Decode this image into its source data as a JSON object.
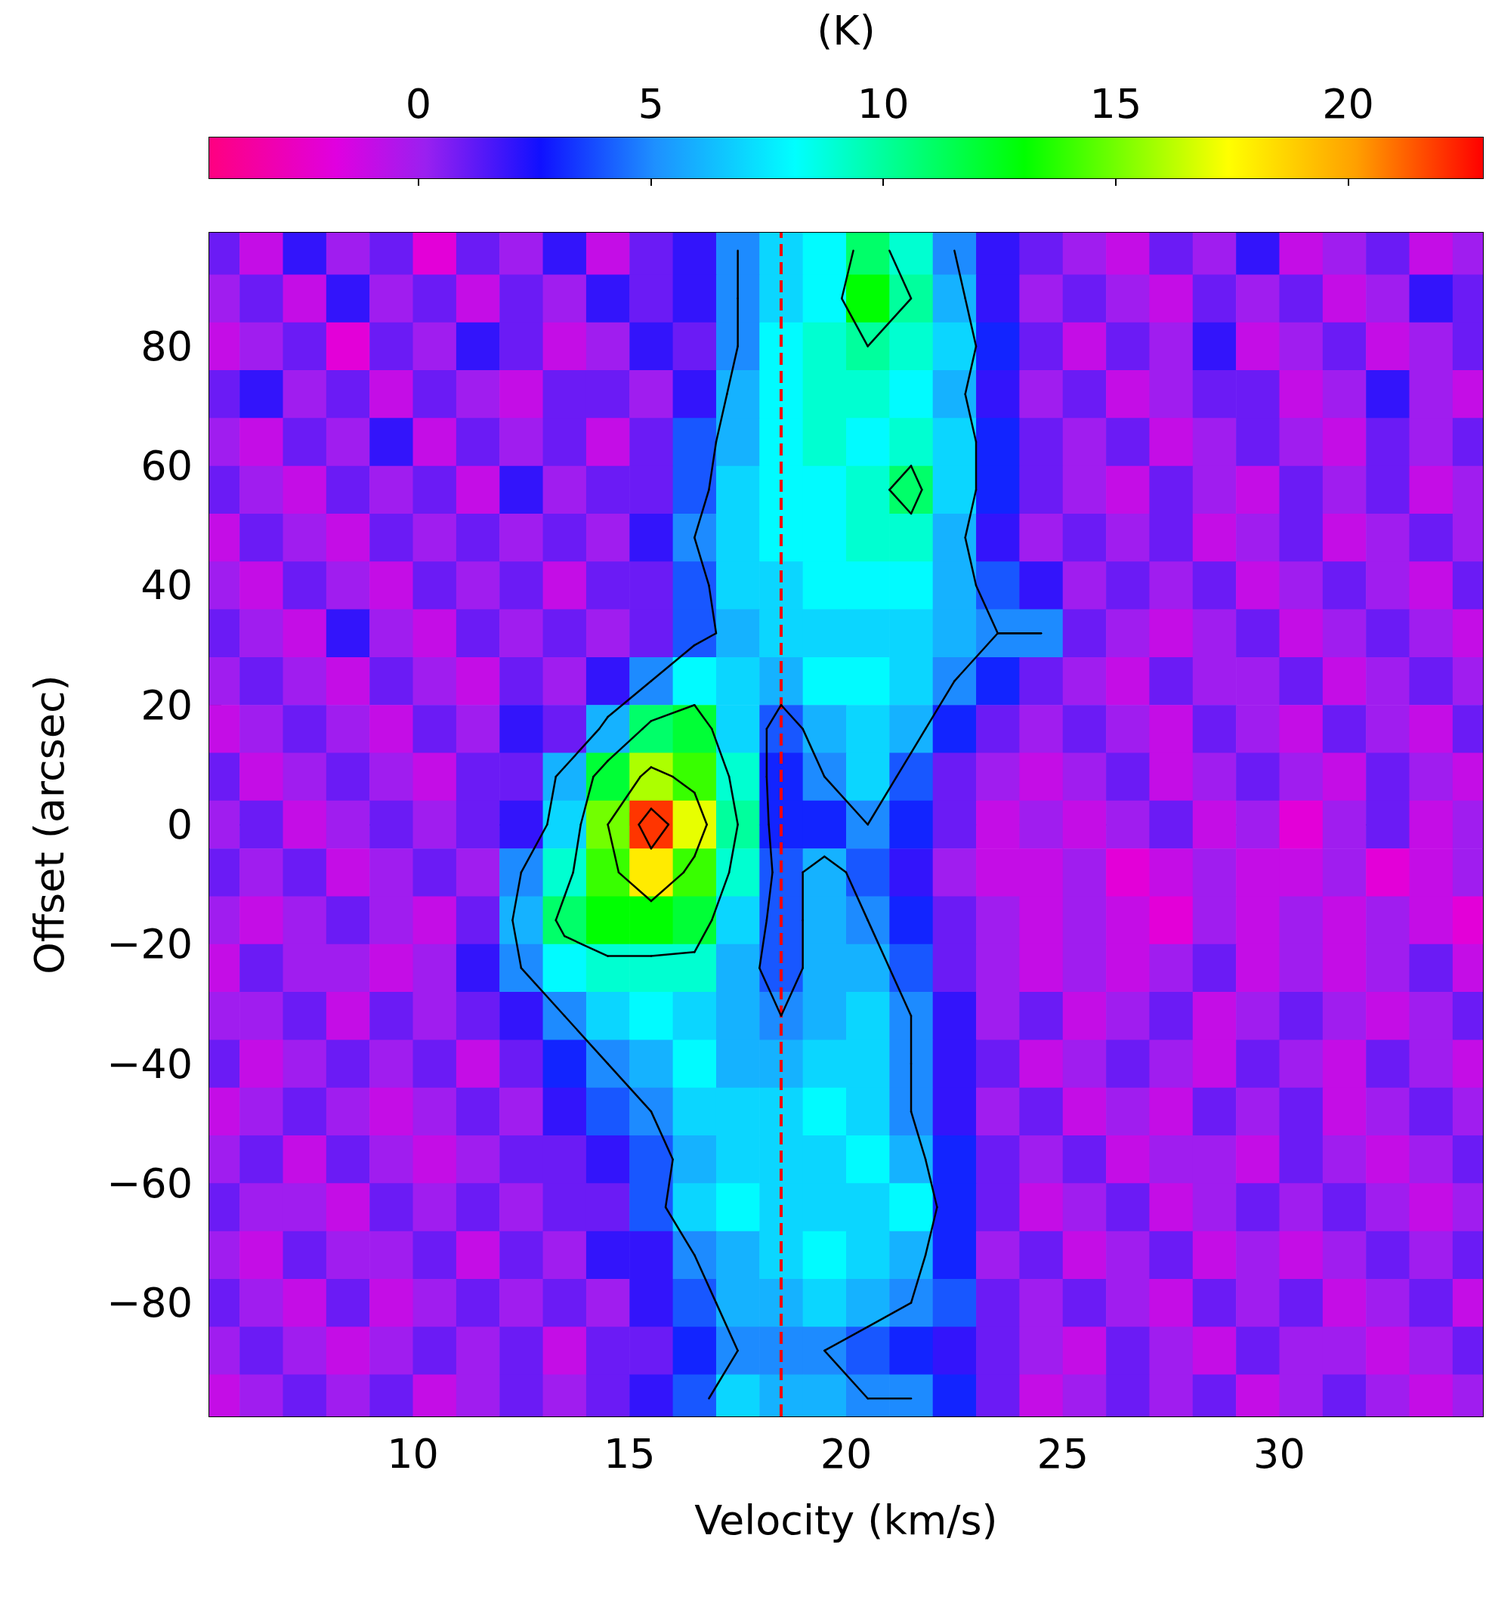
{
  "chart_data": {
    "type": "heatmap",
    "x_label": "Velocity (km/s)",
    "y_label": "Offset (arcsec)",
    "x": [
      5.5,
      6.5,
      7.5,
      8.5,
      9.5,
      10.5,
      11.5,
      12.5,
      13.5,
      14.5,
      15.5,
      16.5,
      17.5,
      18.5,
      19.5,
      20.5,
      21.5,
      22.5,
      23.5,
      24.5,
      25.5,
      26.5,
      27.5,
      28.5,
      29.5,
      30.5,
      31.5,
      32.5,
      33.5,
      34.5
    ],
    "y": [
      96,
      88,
      80,
      72,
      64,
      56,
      48,
      40,
      32,
      24,
      16,
      8,
      0,
      -8,
      -16,
      -24,
      -32,
      -40,
      -48,
      -56,
      -64,
      -72,
      -80,
      -88,
      -96
    ],
    "cells": [
      [
        1,
        -1,
        2,
        0,
        1,
        -2,
        1,
        0,
        2,
        -1,
        1,
        2,
        5,
        7,
        8,
        11,
        9,
        5,
        2,
        1,
        0,
        -1,
        1,
        0,
        2,
        -1,
        0,
        1,
        -1,
        0
      ],
      [
        0,
        1,
        -1,
        2,
        0,
        1,
        -1,
        1,
        0,
        2,
        1,
        2,
        5,
        7,
        8,
        13,
        10,
        6,
        2,
        0,
        1,
        0,
        -1,
        1,
        0,
        1,
        -1,
        0,
        2,
        1
      ],
      [
        -1,
        0,
        1,
        -2,
        1,
        0,
        2,
        1,
        -1,
        0,
        2,
        1,
        5,
        8,
        9,
        10,
        9,
        7,
        3,
        1,
        -1,
        1,
        0,
        2,
        -1,
        0,
        1,
        -1,
        0,
        1
      ],
      [
        1,
        2,
        0,
        1,
        -1,
        1,
        0,
        -1,
        1,
        1,
        0,
        2,
        6,
        8,
        9,
        9,
        8,
        6,
        2,
        0,
        1,
        -1,
        0,
        1,
        1,
        -1,
        0,
        2,
        0,
        -1
      ],
      [
        0,
        -1,
        1,
        0,
        2,
        -1,
        1,
        0,
        1,
        -1,
        1,
        4,
        6,
        8,
        9,
        8,
        9,
        7,
        3,
        1,
        0,
        1,
        -1,
        0,
        1,
        0,
        -1,
        1,
        0,
        1
      ],
      [
        1,
        0,
        -1,
        1,
        0,
        1,
        -1,
        2,
        0,
        1,
        1,
        4,
        7,
        8,
        8,
        9,
        11,
        7,
        3,
        1,
        0,
        -1,
        1,
        0,
        -1,
        1,
        0,
        1,
        -1,
        0
      ],
      [
        -1,
        1,
        0,
        -1,
        1,
        0,
        1,
        0,
        1,
        0,
        2,
        5,
        7,
        8,
        8,
        9,
        9,
        6,
        2,
        0,
        1,
        0,
        1,
        -1,
        0,
        1,
        -1,
        0,
        1,
        0
      ],
      [
        0,
        -1,
        1,
        0,
        -1,
        1,
        0,
        1,
        -1,
        1,
        1,
        4,
        7,
        7,
        8,
        8,
        8,
        6,
        4,
        2,
        0,
        1,
        0,
        1,
        -1,
        0,
        1,
        0,
        -1,
        1
      ],
      [
        1,
        0,
        -1,
        2,
        0,
        -1,
        1,
        0,
        1,
        0,
        1,
        4,
        6,
        7,
        7,
        7,
        7,
        6,
        5,
        5,
        1,
        0,
        -1,
        0,
        1,
        -1,
        0,
        1,
        0,
        -1
      ],
      [
        0,
        1,
        0,
        -1,
        1,
        0,
        -1,
        1,
        0,
        2,
        5,
        8,
        7,
        6,
        8,
        8,
        7,
        5,
        3,
        1,
        0,
        -1,
        1,
        0,
        0,
        1,
        -1,
        0,
        1,
        0
      ],
      [
        -1,
        0,
        1,
        0,
        -1,
        1,
        0,
        2,
        1,
        6,
        11,
        12,
        7,
        4,
        6,
        7,
        6,
        3,
        1,
        0,
        1,
        0,
        -1,
        1,
        0,
        -1,
        1,
        0,
        -1,
        1
      ],
      [
        1,
        -1,
        0,
        1,
        0,
        -1,
        1,
        1,
        6,
        12,
        16,
        14,
        9,
        3,
        5,
        7,
        4,
        1,
        0,
        -1,
        0,
        1,
        -1,
        0,
        1,
        0,
        -1,
        1,
        0,
        -1
      ],
      [
        0,
        1,
        -1,
        0,
        1,
        0,
        1,
        2,
        7,
        15,
        22,
        17,
        10,
        3,
        3,
        5,
        3,
        1,
        -1,
        0,
        -1,
        0,
        1,
        -1,
        0,
        -2,
        0,
        1,
        -1,
        0
      ],
      [
        1,
        0,
        1,
        -1,
        0,
        1,
        0,
        5,
        9,
        14,
        18,
        14,
        9,
        4,
        6,
        4,
        2,
        0,
        -1,
        -1,
        0,
        -2,
        -1,
        0,
        -1,
        -1,
        0,
        -2,
        -1,
        0
      ],
      [
        0,
        -1,
        0,
        1,
        0,
        -1,
        1,
        6,
        11,
        13,
        13,
        12,
        7,
        4,
        6,
        5,
        3,
        1,
        0,
        -1,
        0,
        -1,
        -2,
        0,
        -1,
        0,
        -1,
        0,
        -1,
        -2
      ],
      [
        -1,
        1,
        0,
        0,
        -1,
        0,
        2,
        5,
        8,
        9,
        9,
        9,
        6,
        4,
        6,
        6,
        4,
        1,
        0,
        -1,
        0,
        -1,
        0,
        1,
        -1,
        0,
        -1,
        0,
        1,
        -1
      ],
      [
        0,
        0,
        1,
        -1,
        1,
        0,
        1,
        2,
        5,
        7,
        8,
        7,
        6,
        5,
        6,
        7,
        5,
        2,
        0,
        1,
        -1,
        0,
        1,
        -1,
        0,
        1,
        0,
        -1,
        0,
        1
      ],
      [
        1,
        -1,
        0,
        1,
        0,
        1,
        -1,
        1,
        3,
        5,
        6,
        8,
        6,
        6,
        7,
        7,
        5,
        2,
        1,
        -1,
        0,
        1,
        0,
        -1,
        1,
        0,
        -1,
        1,
        0,
        -1
      ],
      [
        -1,
        0,
        1,
        0,
        -1,
        0,
        1,
        0,
        2,
        4,
        5,
        7,
        7,
        7,
        8,
        7,
        5,
        2,
        0,
        1,
        -1,
        0,
        -1,
        1,
        0,
        1,
        -1,
        0,
        1,
        0
      ],
      [
        0,
        1,
        -1,
        1,
        0,
        -1,
        0,
        1,
        1,
        2,
        4,
        6,
        7,
        7,
        7,
        8,
        6,
        3,
        1,
        0,
        1,
        -1,
        0,
        0,
        -1,
        1,
        0,
        -1,
        0,
        1
      ],
      [
        1,
        0,
        0,
        -1,
        1,
        0,
        1,
        0,
        1,
        1,
        4,
        7,
        8,
        7,
        7,
        7,
        8,
        3,
        1,
        -1,
        0,
        1,
        -1,
        0,
        1,
        0,
        1,
        0,
        -1,
        0
      ],
      [
        0,
        -1,
        1,
        0,
        0,
        1,
        -1,
        1,
        0,
        2,
        2,
        5,
        6,
        7,
        8,
        7,
        6,
        3,
        0,
        1,
        -1,
        0,
        1,
        -1,
        0,
        -1,
        0,
        1,
        0,
        1
      ],
      [
        1,
        0,
        -1,
        1,
        -1,
        0,
        1,
        0,
        1,
        0,
        2,
        4,
        6,
        6,
        7,
        6,
        5,
        4,
        1,
        0,
        1,
        0,
        -1,
        1,
        0,
        1,
        -1,
        0,
        1,
        -1
      ],
      [
        0,
        1,
        0,
        -1,
        0,
        1,
        0,
        1,
        -1,
        1,
        1,
        3,
        5,
        5,
        5,
        4,
        3,
        2,
        1,
        0,
        -1,
        1,
        0,
        -1,
        1,
        0,
        0,
        -1,
        0,
        1
      ],
      [
        -1,
        0,
        1,
        0,
        1,
        -1,
        0,
        1,
        0,
        1,
        2,
        4,
        7,
        6,
        6,
        5,
        5,
        3,
        1,
        -1,
        0,
        1,
        0,
        1,
        -1,
        0,
        1,
        0,
        -1,
        0
      ]
    ],
    "xlim": [
      5.3,
      34.7
    ],
    "ylim": [
      -99,
      99
    ],
    "xticks": [
      10,
      15,
      20,
      25,
      30
    ],
    "yticks": [
      {
        "value": -80,
        "label": "−80"
      },
      {
        "value": -60,
        "label": "−60"
      },
      {
        "value": -40,
        "label": "−40"
      },
      {
        "value": -20,
        "label": "−20"
      },
      0,
      20,
      40,
      60,
      80
    ],
    "colorbar": {
      "label": "(K)",
      "range": [
        -4.5,
        22.9
      ],
      "ticks": [
        0,
        5,
        10,
        15,
        20
      ]
    },
    "contour_levels": [
      5,
      10,
      15,
      20
    ],
    "reference_line": {
      "x": 18.5,
      "color": "#ff0000",
      "line_style": "dashed"
    }
  }
}
